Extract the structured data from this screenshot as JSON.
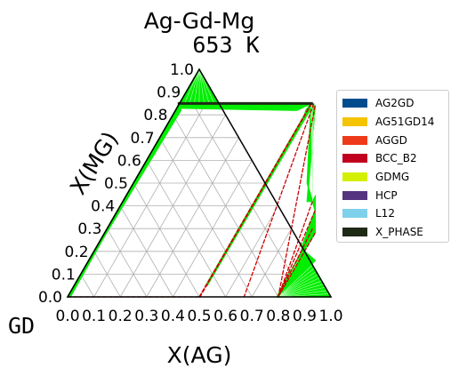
{
  "chart_data": {
    "type": "ternary",
    "title_line1": "Ag-Gd-Mg",
    "title_line2": "653  K",
    "xlabel": "X(AG)",
    "ylabel": "X(MG)",
    "corner_label": "GD",
    "ticks": [
      "0.0",
      "0.1",
      "0.2",
      "0.3",
      "0.4",
      "0.5",
      "0.6",
      "0.7",
      "0.8",
      "0.9",
      "1.0"
    ],
    "colors": {
      "phase_region": "#00ee00",
      "tie_line": "#cc0000",
      "grid": "#b0b0b0",
      "frame": "#000000"
    },
    "legend": [
      {
        "label": "AG2GD",
        "color": "#004c8c"
      },
      {
        "label": "AG51GD14",
        "color": "#f5c400"
      },
      {
        "label": "AGGD",
        "color": "#ee3a1a"
      },
      {
        "label": "BCC_B2",
        "color": "#c0001e"
      },
      {
        "label": "GDMG",
        "color": "#d4f000"
      },
      {
        "label": "HCP",
        "color": "#553380"
      },
      {
        "label": "L12",
        "color": "#7fd0ea"
      },
      {
        "label": "X_PHASE",
        "color": "#1f2a16"
      }
    ],
    "phase_regions": [
      {
        "points": [
          [
            0.0,
            0.0
          ],
          [
            0.0,
            0.85
          ],
          [
            0.0,
            0.82
          ],
          [
            0.01,
            0.0
          ]
        ]
      },
      {
        "points": [
          [
            0.0,
            0.85
          ],
          [
            0.5,
            0.85
          ],
          [
            0.46,
            0.82
          ],
          [
            0.0,
            0.83
          ]
        ]
      },
      {
        "points": [
          [
            0.5,
            0.85
          ],
          [
            0.495,
            0.82
          ],
          [
            0.5,
            0.8
          ],
          [
            0.5,
            0.05
          ],
          [
            0.505,
            0.05
          ],
          [
            0.51,
            0.84
          ]
        ]
      },
      {
        "points": [
          [
            0.5,
            0.85
          ],
          [
            0.52,
            0.84
          ],
          [
            0.7,
            0.42
          ],
          [
            0.72,
            0.42
          ],
          [
            0.66,
            0.5
          ]
        ]
      },
      {
        "points": [
          [
            0.0,
            1.0
          ],
          [
            0.15,
            0.85
          ],
          [
            0.0,
            0.85
          ]
        ]
      },
      {
        "points": [
          [
            0.0,
            1.0
          ],
          [
            0.0,
            0.85
          ],
          [
            0.03,
            0.85
          ],
          [
            0.01,
            0.93
          ]
        ]
      },
      {
        "points": [
          [
            0.0,
            0.85
          ],
          [
            0.02,
            0.82
          ],
          [
            0.0,
            0.0
          ],
          [
            0.0,
            0.83
          ]
        ]
      },
      {
        "points": [
          [
            0.72,
            0.42
          ],
          [
            0.75,
            0.38
          ],
          [
            0.78,
            0.22
          ],
          [
            0.79,
            0.2
          ],
          [
            0.795,
            0.0
          ],
          [
            0.79,
            0.1
          ],
          [
            0.8,
            0.28
          ],
          [
            0.72,
            0.44
          ]
        ]
      },
      {
        "points": [
          [
            0.8,
            0.0
          ],
          [
            0.82,
            0.0
          ],
          [
            0.84,
            0.1
          ],
          [
            0.86,
            0.16
          ],
          [
            0.8,
            0.2
          ]
        ]
      },
      {
        "points": [
          [
            0.8,
            0.0
          ],
          [
            0.9,
            0.0
          ],
          [
            1.0,
            0.0
          ],
          [
            0.86,
            0.14
          ],
          [
            0.84,
            0.08
          ]
        ]
      }
    ],
    "tie_lines": [
      {
        "a": [
          0.0,
          0.85
        ],
        "b": [
          0.0,
          0.0
        ]
      },
      {
        "a": [
          0.5,
          0.85
        ],
        "b": [
          0.5,
          0.0
        ]
      },
      {
        "a": [
          0.502,
          0.85
        ],
        "b": [
          0.503,
          0.0
        ]
      },
      {
        "a": [
          0.51,
          0.85
        ],
        "b": [
          0.67,
          0.0
        ]
      },
      {
        "a": [
          0.52,
          0.84
        ],
        "b": [
          0.8,
          0.0
        ]
      },
      {
        "a": [
          0.0,
          0.85
        ],
        "b": [
          0.5,
          0.85
        ]
      },
      {
        "a": [
          0.0,
          0.0
        ],
        "b": [
          0.5,
          0.0
        ]
      },
      {
        "a": [
          0.8,
          0.28
        ],
        "b": [
          0.8,
          0.0
        ]
      },
      {
        "a": [
          0.72,
          0.42
        ],
        "b": [
          0.8,
          0.0
        ]
      },
      {
        "a": [
          0.75,
          0.38
        ],
        "b": [
          0.8,
          0.0
        ]
      },
      {
        "a": [
          0.78,
          0.3
        ],
        "b": [
          0.8,
          0.0
        ]
      }
    ],
    "fans": [
      {
        "from": [
          0.8,
          0.0
        ],
        "to_start": [
          0.86,
          0.14
        ],
        "to_end": [
          1.0,
          0.0
        ],
        "count": 10
      },
      {
        "from": [
          0.5,
          0.85
        ],
        "to_start": [
          0.52,
          0.84
        ],
        "to_end": [
          0.72,
          0.42
        ],
        "count": 8
      },
      {
        "from": [
          0.0,
          1.0
        ],
        "to_start": [
          0.0,
          0.85
        ],
        "to_end": [
          0.15,
          0.85
        ],
        "count": 8
      }
    ]
  }
}
